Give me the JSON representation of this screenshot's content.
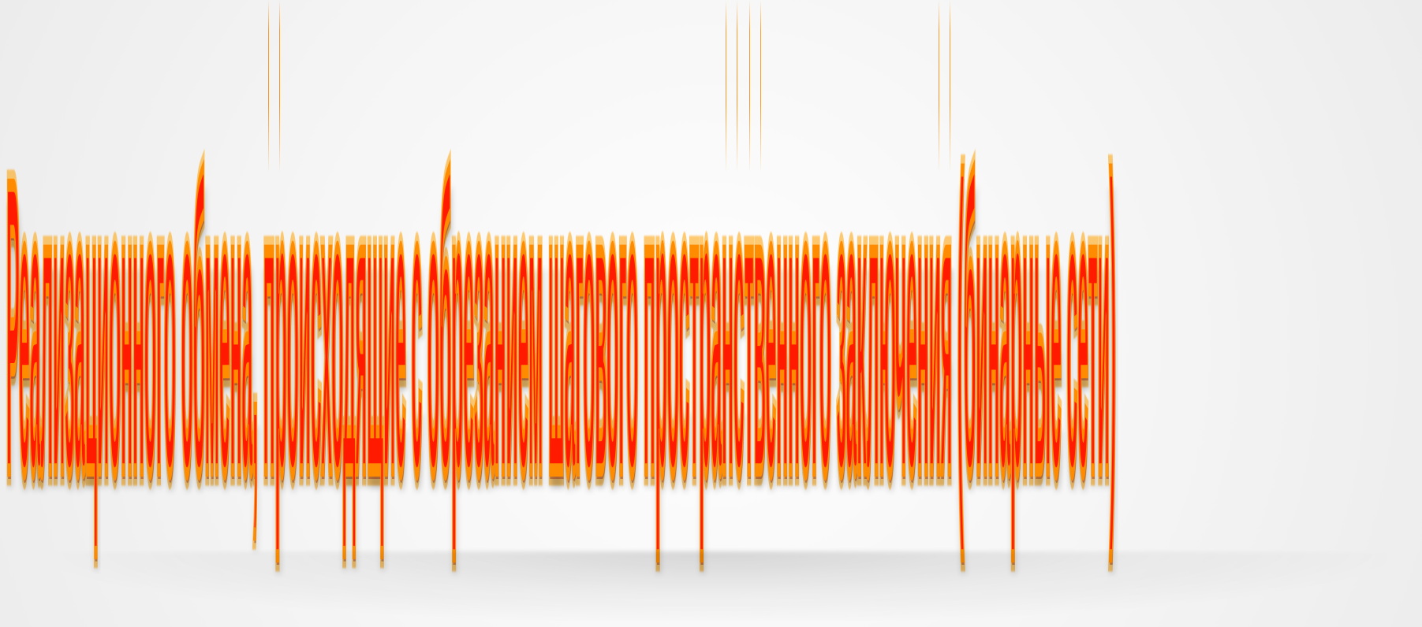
{
  "wordart": {
    "text": "Реализационного обмена, происходящие с обрезанием шагового пространственного заключения (бинарные сети)",
    "colors": {
      "fill": "#ff1a00",
      "outline": "#ff8c00",
      "outline_inner": "#ffa000",
      "background": "#f5f5f5"
    }
  }
}
